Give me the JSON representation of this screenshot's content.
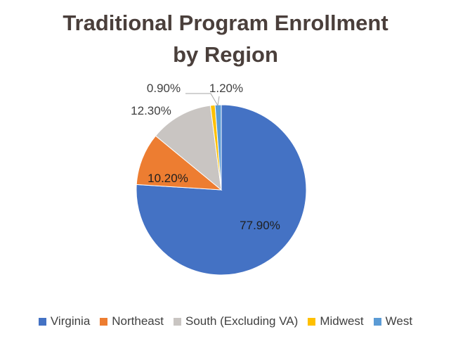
{
  "chart_data": {
    "type": "pie",
    "title": "Traditional Program Enrollment by Region",
    "title_lines": [
      "Traditional Program Enrollment",
      "by Region"
    ],
    "categories": [
      "Virginia",
      "Northeast",
      "South (Excluding VA)",
      "Midwest",
      "West"
    ],
    "values": [
      77.9,
      10.2,
      12.3,
      0.9,
      1.2
    ],
    "data_labels": [
      "77.90%",
      "10.20%",
      "12.30%",
      "0.90%",
      "1.20%"
    ],
    "colors": [
      "#4472c4",
      "#ed7d31",
      "#c9c5c2",
      "#ffc000",
      "#5b9bd5"
    ],
    "legend_position": "bottom"
  }
}
